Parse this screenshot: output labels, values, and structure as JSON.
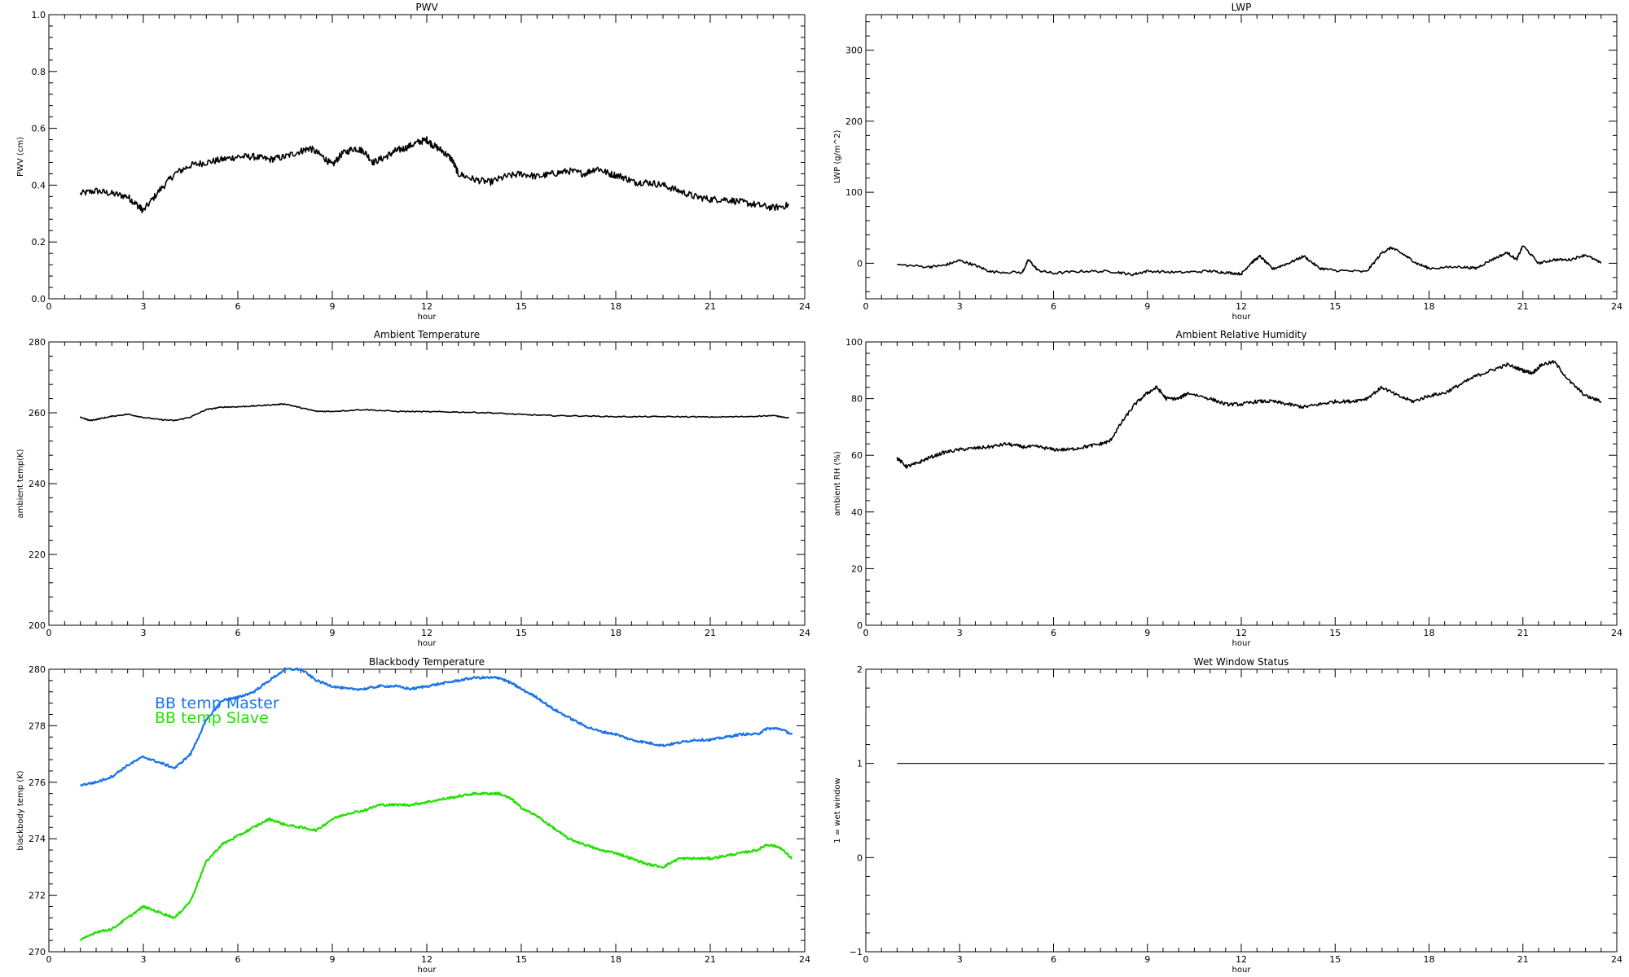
{
  "chart_data": [
    {
      "type": "line",
      "title": "PWV",
      "xlabel": "hour",
      "ylabel": "PWV (cm)",
      "xlim": [
        0,
        24
      ],
      "ylim": [
        0.0,
        1.0
      ],
      "x_ticks": [
        0,
        3,
        6,
        9,
        12,
        15,
        18,
        21,
        24
      ],
      "y_ticks": [
        0.0,
        0.2,
        0.4,
        0.6,
        0.8,
        1.0
      ],
      "y_tick_labels": [
        "0.0",
        "0.2",
        "0.4",
        "0.6",
        "0.8",
        "1.0"
      ],
      "grid": false,
      "noise": 0.012,
      "series": [
        {
          "color": "#000000",
          "x": [
            1.0,
            1.5,
            2.0,
            2.5,
            2.8,
            3.0,
            3.5,
            4.0,
            4.5,
            5.0,
            5.5,
            6.0,
            6.5,
            7.0,
            7.5,
            8.0,
            8.3,
            8.7,
            9.0,
            9.3,
            9.7,
            10.0,
            10.3,
            10.7,
            11.0,
            11.3,
            11.7,
            12.0,
            12.2,
            12.5,
            12.8,
            13.0,
            13.5,
            14.0,
            14.5,
            15.0,
            15.5,
            16.0,
            16.5,
            17.0,
            17.4,
            17.8,
            18.2,
            18.6,
            19.0,
            19.5,
            20.0,
            20.5,
            21.0,
            21.5,
            22.0,
            22.5,
            23.0,
            23.5
          ],
          "y": [
            0.37,
            0.38,
            0.37,
            0.36,
            0.33,
            0.31,
            0.38,
            0.44,
            0.47,
            0.48,
            0.49,
            0.5,
            0.5,
            0.49,
            0.5,
            0.52,
            0.53,
            0.5,
            0.47,
            0.51,
            0.53,
            0.52,
            0.48,
            0.5,
            0.52,
            0.53,
            0.55,
            0.56,
            0.54,
            0.52,
            0.49,
            0.44,
            0.42,
            0.41,
            0.43,
            0.44,
            0.43,
            0.44,
            0.45,
            0.44,
            0.46,
            0.44,
            0.43,
            0.41,
            0.41,
            0.4,
            0.38,
            0.36,
            0.35,
            0.35,
            0.34,
            0.33,
            0.32,
            0.33
          ]
        }
      ]
    },
    {
      "type": "line",
      "title": "LWP",
      "xlabel": "hour",
      "ylabel": "LWP (g/m^2)",
      "xlim": [
        0,
        24
      ],
      "ylim": [
        -50,
        350
      ],
      "x_ticks": [
        0,
        3,
        6,
        9,
        12,
        15,
        18,
        21,
        24
      ],
      "y_ticks": [
        0,
        100,
        200,
        300
      ],
      "y_tick_labels": [
        "0",
        "100",
        "200",
        "300"
      ],
      "grid": false,
      "noise": 1.8,
      "series": [
        {
          "color": "#000000",
          "x": [
            1.0,
            2.0,
            2.5,
            3.0,
            3.5,
            4.0,
            5.0,
            5.2,
            5.5,
            6.0,
            7.0,
            8.0,
            8.5,
            9.0,
            10.0,
            11.0,
            11.5,
            12.0,
            12.3,
            12.6,
            13.0,
            13.5,
            14.0,
            14.5,
            15.0,
            16.0,
            16.5,
            16.8,
            17.2,
            17.6,
            18.0,
            19.0,
            19.5,
            20.0,
            20.5,
            20.8,
            21.0,
            21.5,
            22.0,
            22.5,
            23.0,
            23.5
          ],
          "y": [
            -2,
            -5,
            -3,
            4,
            -3,
            -12,
            -13,
            5,
            -10,
            -14,
            -11,
            -12,
            -16,
            -11,
            -13,
            -11,
            -13,
            -15,
            0,
            10,
            -8,
            0,
            10,
            -7,
            -10,
            -12,
            15,
            22,
            12,
            0,
            -7,
            -5,
            -7,
            5,
            15,
            5,
            25,
            0,
            5,
            5,
            12,
            0
          ]
        }
      ]
    },
    {
      "type": "line",
      "title": "Ambient Temperature",
      "xlabel": "hour",
      "ylabel": "ambient temp(K)",
      "xlim": [
        0,
        24
      ],
      "ylim": [
        200,
        280
      ],
      "x_ticks": [
        0,
        3,
        6,
        9,
        12,
        15,
        18,
        21,
        24
      ],
      "y_ticks": [
        200,
        220,
        240,
        260,
        280
      ],
      "y_tick_labels": [
        "200",
        "220",
        "240",
        "260",
        "280"
      ],
      "grid": false,
      "noise": 0.15,
      "series": [
        {
          "color": "#000000",
          "x": [
            1.0,
            1.3,
            1.6,
            2.0,
            2.5,
            3.0,
            3.5,
            4.0,
            4.5,
            5.0,
            5.5,
            6.0,
            6.5,
            7.0,
            7.5,
            8.0,
            8.5,
            9.0,
            10.0,
            11.0,
            12.0,
            13.0,
            14.0,
            15.0,
            16.0,
            17.0,
            18.0,
            19.0,
            20.0,
            21.0,
            22.0,
            23.0,
            23.5
          ],
          "y": [
            258.8,
            257.8,
            258.3,
            259.0,
            259.6,
            258.7,
            258.1,
            257.8,
            258.8,
            260.9,
            261.6,
            261.7,
            261.9,
            262.2,
            262.5,
            261.4,
            260.4,
            260.4,
            260.9,
            260.4,
            260.3,
            260.2,
            260.0,
            259.5,
            259.2,
            259.1,
            258.9,
            258.9,
            258.9,
            258.8,
            258.9,
            259.2,
            258.6
          ]
        }
      ]
    },
    {
      "type": "line",
      "title": "Ambient Relative Humidity",
      "xlabel": "hour",
      "ylabel": "ambient RH (%)",
      "xlim": [
        0,
        24
      ],
      "ylim": [
        0,
        100
      ],
      "x_ticks": [
        0,
        3,
        6,
        9,
        12,
        15,
        18,
        21,
        24
      ],
      "y_ticks": [
        0,
        20,
        40,
        60,
        80,
        100
      ],
      "y_tick_labels": [
        "0",
        "20",
        "40",
        "60",
        "80",
        "100"
      ],
      "grid": false,
      "noise": 0.6,
      "series": [
        {
          "color": "#000000",
          "x": [
            1.0,
            1.3,
            1.6,
            2.0,
            2.5,
            3.0,
            3.5,
            4.0,
            4.5,
            5.0,
            5.5,
            6.0,
            6.5,
            7.0,
            7.5,
            7.8,
            8.2,
            8.6,
            9.0,
            9.3,
            9.6,
            10.0,
            10.3,
            11.0,
            11.5,
            12.0,
            12.5,
            13.0,
            13.5,
            14.0,
            14.5,
            15.0,
            15.5,
            16.0,
            16.5,
            17.0,
            17.5,
            18.0,
            18.5,
            19.0,
            19.5,
            20.0,
            20.5,
            21.0,
            21.3,
            21.6,
            22.0,
            22.5,
            23.0,
            23.5
          ],
          "y": [
            59,
            56,
            57,
            59,
            61,
            62,
            62.5,
            63,
            64,
            63,
            63,
            62,
            62,
            63,
            64,
            65,
            72,
            78,
            82,
            84,
            80,
            80,
            82,
            80,
            78,
            78,
            79,
            79,
            78,
            77,
            78,
            79,
            79,
            80,
            84,
            81,
            79,
            81,
            82,
            85,
            88,
            90,
            92,
            90,
            89,
            92,
            93,
            86,
            81,
            79
          ]
        }
      ]
    },
    {
      "type": "line",
      "title": "Blackbody Temperature",
      "xlabel": "hour",
      "ylabel": "blackbody temp (K)",
      "xlim": [
        0,
        24
      ],
      "ylim": [
        270,
        280
      ],
      "x_ticks": [
        0,
        3,
        6,
        9,
        12,
        15,
        18,
        21,
        24
      ],
      "y_ticks": [
        270,
        272,
        274,
        276,
        278,
        280
      ],
      "y_tick_labels": [
        "270",
        "272",
        "274",
        "276",
        "278",
        "280"
      ],
      "grid": false,
      "noise": 0.04,
      "legend": [
        "BB temp Master",
        "BB temp Slave"
      ],
      "series": [
        {
          "name": "BB temp Master",
          "color": "#1a73e8",
          "x": [
            1.0,
            1.5,
            2.0,
            2.5,
            3.0,
            3.5,
            4.0,
            4.5,
            5.0,
            5.5,
            6.0,
            6.5,
            7.0,
            7.5,
            8.0,
            8.5,
            9.0,
            9.5,
            10.0,
            10.5,
            11.0,
            11.5,
            12.0,
            12.5,
            13.0,
            13.5,
            14.0,
            14.3,
            14.7,
            15.0,
            15.5,
            16.0,
            16.5,
            17.0,
            17.5,
            18.0,
            18.5,
            19.0,
            19.5,
            20.0,
            20.5,
            21.0,
            21.5,
            22.0,
            22.5,
            22.8,
            23.2,
            23.6
          ],
          "y": [
            275.9,
            276.0,
            276.2,
            276.6,
            276.9,
            276.7,
            276.5,
            277.0,
            278.2,
            278.9,
            279.0,
            279.2,
            279.6,
            280.0,
            280.0,
            279.6,
            279.4,
            279.3,
            279.3,
            279.4,
            279.4,
            279.3,
            279.4,
            279.5,
            279.6,
            279.7,
            279.7,
            279.7,
            279.5,
            279.3,
            279.0,
            278.6,
            278.3,
            278.0,
            277.8,
            277.7,
            277.5,
            277.4,
            277.3,
            277.4,
            277.5,
            277.5,
            277.6,
            277.7,
            277.7,
            277.9,
            277.9,
            277.7
          ]
        },
        {
          "name": "BB temp Slave",
          "color": "#22e000",
          "x": [
            1.0,
            1.5,
            2.0,
            2.5,
            3.0,
            3.5,
            4.0,
            4.5,
            5.0,
            5.5,
            6.0,
            6.5,
            7.0,
            7.5,
            8.0,
            8.5,
            9.0,
            9.5,
            10.0,
            10.5,
            11.0,
            11.5,
            12.0,
            12.5,
            13.0,
            13.5,
            14.0,
            14.3,
            14.7,
            15.0,
            15.5,
            16.0,
            16.5,
            17.0,
            17.5,
            18.0,
            18.5,
            19.0,
            19.5,
            20.0,
            20.5,
            21.0,
            21.5,
            22.0,
            22.5,
            22.8,
            23.2,
            23.6
          ],
          "y": [
            270.4,
            270.7,
            270.8,
            271.2,
            271.6,
            271.4,
            271.2,
            271.8,
            273.2,
            273.8,
            274.1,
            274.4,
            274.7,
            274.5,
            274.4,
            274.3,
            274.7,
            274.9,
            275.0,
            275.2,
            275.2,
            275.2,
            275.3,
            275.4,
            275.5,
            275.6,
            275.6,
            275.6,
            275.4,
            275.1,
            274.8,
            274.4,
            274.0,
            273.8,
            273.6,
            273.5,
            273.3,
            273.1,
            273.0,
            273.3,
            273.3,
            273.3,
            273.4,
            273.5,
            273.6,
            273.8,
            273.7,
            273.3
          ]
        }
      ]
    },
    {
      "type": "line",
      "title": "Wet Window Status",
      "xlabel": "hour",
      "ylabel": "1 = wet window",
      "xlim": [
        0,
        24
      ],
      "ylim": [
        -1,
        2
      ],
      "x_ticks": [
        0,
        3,
        6,
        9,
        12,
        15,
        18,
        21,
        24
      ],
      "y_ticks": [
        -1,
        0,
        1,
        2
      ],
      "y_tick_labels": [
        "−1",
        "0",
        "1",
        "2"
      ],
      "grid": false,
      "noise": 0,
      "series": [
        {
          "color": "#000000",
          "x": [
            1.0,
            23.6
          ],
          "y": [
            1,
            1
          ]
        }
      ]
    }
  ]
}
